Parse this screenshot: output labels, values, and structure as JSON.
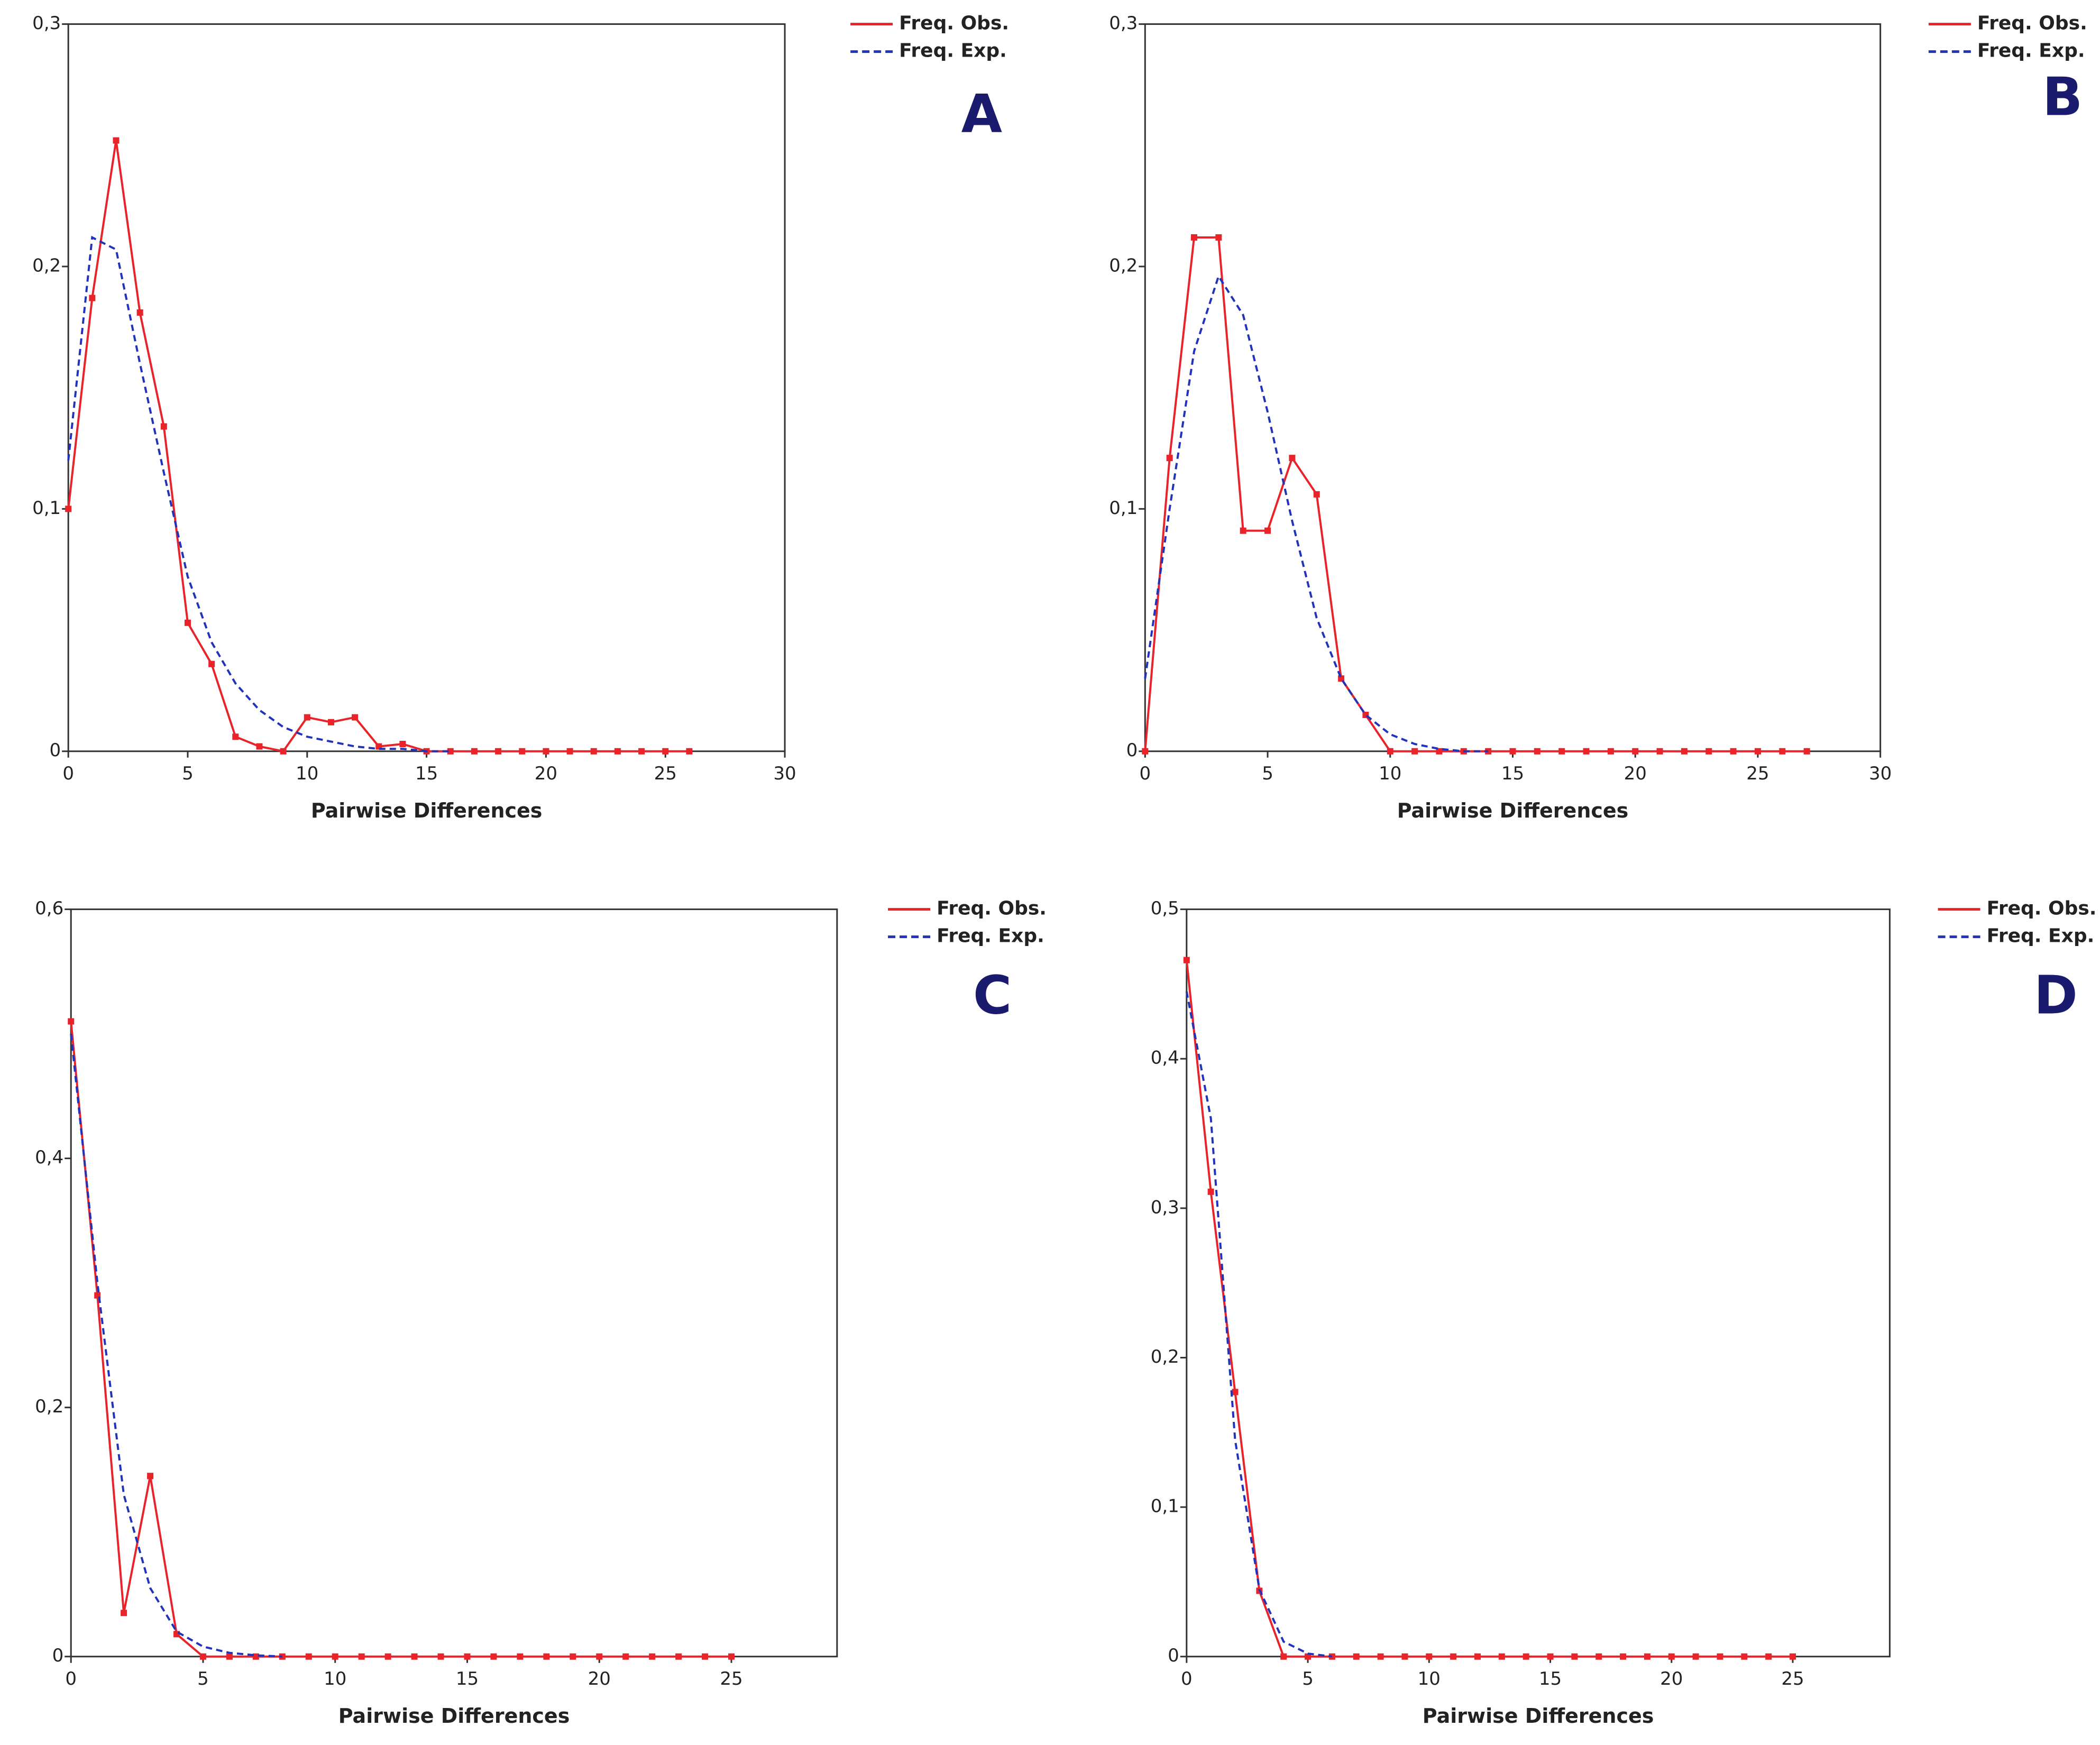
{
  "chart_data": [
    {
      "type": "line",
      "panel_label": "A",
      "xlabel": "Pairwise Differences",
      "x": [
        0,
        1,
        2,
        3,
        4,
        5,
        6,
        7,
        8,
        9,
        10,
        11,
        12,
        13,
        14,
        15,
        16,
        17,
        18,
        19,
        20,
        21,
        22,
        23,
        24,
        25,
        26
      ],
      "xlim": [
        0,
        30
      ],
      "xticks": [
        0,
        5,
        10,
        15,
        20,
        25,
        30
      ],
      "ylim": [
        0,
        0.3
      ],
      "yticks": [
        {
          "value": 0,
          "label": "0"
        },
        {
          "value": 0.1,
          "label": "0,1"
        },
        {
          "value": 0.2,
          "label": "0,2"
        },
        {
          "value": 0.3,
          "label": "0,3"
        }
      ],
      "series": [
        {
          "name": "Freq. Obs.",
          "color": "#e8232a",
          "line_style": "solid",
          "marker": true,
          "values": [
            0.1,
            0.187,
            0.252,
            0.181,
            0.134,
            0.053,
            0.036,
            0.006,
            0.002,
            0,
            0.014,
            0.012,
            0.014,
            0.002,
            0.003,
            0,
            0,
            0,
            0,
            0,
            0,
            0,
            0,
            0,
            0,
            0,
            0
          ]
        },
        {
          "name": "Freq. Exp.",
          "color": "#2233bb",
          "line_style": "dashed",
          "marker": false,
          "values": [
            0.12,
            0.212,
            0.207,
            0.16,
            0.115,
            0.072,
            0.045,
            0.028,
            0.017,
            0.01,
            0.006,
            0.004,
            0.002,
            0.001,
            0.001,
            0,
            0,
            null,
            null,
            null,
            null,
            null,
            null,
            null,
            null,
            null,
            null
          ]
        }
      ]
    },
    {
      "type": "line",
      "panel_label": "B",
      "xlabel": "Pairwise Differences",
      "x": [
        0,
        1,
        2,
        3,
        4,
        5,
        6,
        7,
        8,
        9,
        10,
        11,
        12,
        13,
        14,
        15,
        16,
        17,
        18,
        19,
        20,
        21,
        22,
        23,
        24,
        25,
        26,
        27
      ],
      "xlim": [
        0,
        30
      ],
      "xticks": [
        0,
        5,
        10,
        15,
        20,
        25,
        30
      ],
      "ylim": [
        0,
        0.3
      ],
      "yticks": [
        {
          "value": 0,
          "label": "0"
        },
        {
          "value": 0.1,
          "label": "0,1"
        },
        {
          "value": 0.2,
          "label": "0,2"
        },
        {
          "value": 0.3,
          "label": "0,3"
        }
      ],
      "series": [
        {
          "name": "Freq. Obs.",
          "color": "#e8232a",
          "line_style": "solid",
          "marker": true,
          "values": [
            0,
            0.121,
            0.212,
            0.212,
            0.091,
            0.091,
            0.121,
            0.106,
            0.03,
            0.015,
            0,
            0,
            0,
            0,
            0,
            0,
            0,
            0,
            0,
            0,
            0,
            0,
            0,
            0,
            0,
            0,
            0,
            0
          ]
        },
        {
          "name": "Freq. Exp.",
          "color": "#2233bb",
          "line_style": "dashed",
          "marker": false,
          "values": [
            0.03,
            0.1,
            0.165,
            0.196,
            0.18,
            0.14,
            0.095,
            0.055,
            0.03,
            0.015,
            0.007,
            0.003,
            0.001,
            0,
            0,
            null,
            null,
            null,
            null,
            null,
            null,
            null,
            null,
            null,
            null,
            null,
            null,
            null
          ]
        }
      ]
    },
    {
      "type": "line",
      "panel_label": "C",
      "xlabel": "Pairwise Differences",
      "x": [
        0,
        1,
        2,
        3,
        4,
        5,
        6,
        7,
        8,
        9,
        10,
        11,
        12,
        13,
        14,
        15,
        16,
        17,
        18,
        19,
        20,
        21,
        22,
        23,
        24,
        25
      ],
      "xlim": [
        0,
        29
      ],
      "xticks": [
        0,
        5,
        10,
        15,
        20,
        25
      ],
      "ylim": [
        0,
        0.6
      ],
      "yticks": [
        {
          "value": 0,
          "label": "0"
        },
        {
          "value": 0.2,
          "label": "0,2"
        },
        {
          "value": 0.4,
          "label": "0,4"
        },
        {
          "value": 0.6,
          "label": "0,6"
        }
      ],
      "series": [
        {
          "name": "Freq. Obs.",
          "color": "#e8232a",
          "line_style": "solid",
          "marker": true,
          "values": [
            0.51,
            0.29,
            0.035,
            0.145,
            0.018,
            0,
            0,
            0,
            0,
            0,
            0,
            0,
            0,
            0,
            0,
            0,
            0,
            0,
            0,
            0,
            0,
            0,
            0,
            0,
            0,
            0
          ]
        },
        {
          "name": "Freq. Exp.",
          "color": "#2233bb",
          "line_style": "dashed",
          "marker": false,
          "values": [
            0.5,
            0.3,
            0.13,
            0.055,
            0.02,
            0.008,
            0.003,
            0.001,
            0,
            null,
            null,
            null,
            null,
            null,
            null,
            null,
            null,
            null,
            null,
            null,
            null,
            null,
            null,
            null,
            null,
            null
          ]
        }
      ]
    },
    {
      "type": "line",
      "panel_label": "D",
      "xlabel": "Pairwise Differences",
      "x": [
        0,
        1,
        2,
        3,
        4,
        5,
        6,
        7,
        8,
        9,
        10,
        11,
        12,
        13,
        14,
        15,
        16,
        17,
        18,
        19,
        20,
        21,
        22,
        23,
        24,
        25
      ],
      "xlim": [
        0,
        29
      ],
      "xticks": [
        0,
        5,
        10,
        15,
        20,
        25
      ],
      "ylim": [
        0,
        0.5
      ],
      "yticks": [
        {
          "value": 0,
          "label": "0"
        },
        {
          "value": 0.1,
          "label": "0,1"
        },
        {
          "value": 0.2,
          "label": "0,2"
        },
        {
          "value": 0.3,
          "label": "0,3"
        },
        {
          "value": 0.4,
          "label": "0,4"
        },
        {
          "value": 0.5,
          "label": "0,5"
        }
      ],
      "series": [
        {
          "name": "Freq. Obs.",
          "color": "#e8232a",
          "line_style": "solid",
          "marker": true,
          "values": [
            0.466,
            0.311,
            0.177,
            0.044,
            0,
            0,
            0,
            0,
            0,
            0,
            0,
            0,
            0,
            0,
            0,
            0,
            0,
            0,
            0,
            0,
            0,
            0,
            0,
            0,
            0,
            0
          ]
        },
        {
          "name": "Freq. Exp.",
          "color": "#2233bb",
          "line_style": "dashed",
          "marker": false,
          "values": [
            0.445,
            0.36,
            0.145,
            0.045,
            0.01,
            0.002,
            0,
            null,
            null,
            null,
            null,
            null,
            null,
            null,
            null,
            null,
            null,
            null,
            null,
            null,
            null,
            null,
            null,
            null,
            null,
            null
          ]
        }
      ]
    }
  ]
}
